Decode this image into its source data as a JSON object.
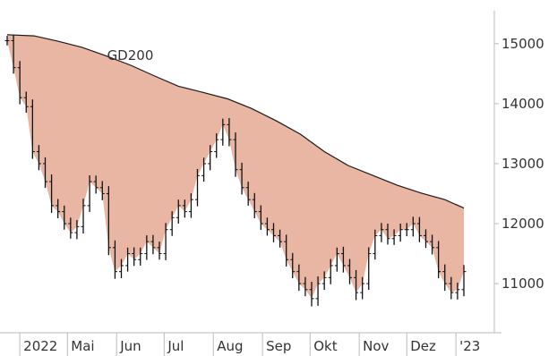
{
  "chart_data": {
    "type": "bar",
    "style": "ohlc-with-moving-average-band",
    "title": "",
    "xlabel": "",
    "ylabel": "",
    "ylim": [
      10300,
      15400
    ],
    "y_ticks": [
      11000,
      12000,
      13000,
      14000,
      15000
    ],
    "y_tick_labels": [
      "11000",
      "12000",
      "13000",
      "14000",
      "15000"
    ],
    "y_axis_position": "right",
    "x_ticks": [
      {
        "label": "2022",
        "date": "2022-04-01"
      },
      {
        "label": "Mai",
        "date": "2022-05-01"
      },
      {
        "label": "Jun",
        "date": "2022-06-01"
      },
      {
        "label": "Jul",
        "date": "2022-07-01"
      },
      {
        "label": "Aug",
        "date": "2022-08-01"
      },
      {
        "label": "Sep",
        "date": "2022-09-01"
      },
      {
        "label": "Okt",
        "date": "2022-10-01"
      },
      {
        "label": "Nov",
        "date": "2022-11-01"
      },
      {
        "label": "Dez",
        "date": "2022-12-01"
      },
      {
        "label": "'23",
        "date": "2023-01-01"
      }
    ],
    "x_range": [
      "2022-03-24",
      "2023-01-06"
    ],
    "grid": false,
    "series": [
      {
        "name": "GD200",
        "kind": "line",
        "x": [
          "2022-03-24",
          "2022-04-10",
          "2022-04-25",
          "2022-05-10",
          "2022-05-25",
          "2022-06-10",
          "2022-06-25",
          "2022-07-10",
          "2022-07-25",
          "2022-08-10",
          "2022-08-25",
          "2022-09-10",
          "2022-09-25",
          "2022-10-10",
          "2022-10-25",
          "2022-11-10",
          "2022-11-25",
          "2022-12-10",
          "2022-12-25",
          "2023-01-06"
        ],
        "values": [
          15150,
          15130,
          15040,
          14940,
          14800,
          14640,
          14460,
          14290,
          14190,
          14080,
          13920,
          13710,
          13490,
          13200,
          12970,
          12800,
          12640,
          12510,
          12400,
          12260
        ]
      },
      {
        "name": "price",
        "kind": "ohlc",
        "x": [
          "2022-03-24",
          "2022-03-28",
          "2022-04-01",
          "2022-04-05",
          "2022-04-09",
          "2022-04-13",
          "2022-04-17",
          "2022-04-21",
          "2022-04-25",
          "2022-04-29",
          "2022-05-03",
          "2022-05-07",
          "2022-05-11",
          "2022-05-15",
          "2022-05-19",
          "2022-05-23",
          "2022-05-27",
          "2022-05-31",
          "2022-06-04",
          "2022-06-08",
          "2022-06-12",
          "2022-06-16",
          "2022-06-20",
          "2022-06-24",
          "2022-06-28",
          "2022-07-02",
          "2022-07-06",
          "2022-07-10",
          "2022-07-14",
          "2022-07-18",
          "2022-07-22",
          "2022-07-26",
          "2022-07-30",
          "2022-08-03",
          "2022-08-07",
          "2022-08-11",
          "2022-08-15",
          "2022-08-19",
          "2022-08-23",
          "2022-08-27",
          "2022-08-31",
          "2022-09-04",
          "2022-09-08",
          "2022-09-12",
          "2022-09-16",
          "2022-09-20",
          "2022-09-24",
          "2022-09-28",
          "2022-10-02",
          "2022-10-06",
          "2022-10-10",
          "2022-10-14",
          "2022-10-18",
          "2022-10-22",
          "2022-10-26",
          "2022-10-30",
          "2022-11-03",
          "2022-11-07",
          "2022-11-11",
          "2022-11-15",
          "2022-11-19",
          "2022-11-23",
          "2022-11-27",
          "2022-12-01",
          "2022-12-05",
          "2022-12-09",
          "2022-12-13",
          "2022-12-17",
          "2022-12-21",
          "2022-12-25",
          "2022-12-29",
          "2023-01-02",
          "2023-01-06"
        ],
        "close": [
          15050,
          14600,
          14100,
          13950,
          13200,
          13000,
          12700,
          12300,
          12200,
          12000,
          11850,
          11950,
          12300,
          12700,
          12600,
          12500,
          11600,
          11200,
          11300,
          11500,
          11400,
          11500,
          11700,
          11600,
          11500,
          11900,
          12100,
          12300,
          12200,
          12400,
          12800,
          13000,
          13200,
          13400,
          13650,
          13400,
          12900,
          12600,
          12400,
          12200,
          12000,
          11900,
          11800,
          11700,
          11400,
          11200,
          11000,
          10900,
          10750,
          11000,
          11100,
          11300,
          11500,
          11300,
          11100,
          10850,
          11000,
          11500,
          11800,
          11900,
          11750,
          11800,
          11900,
          11900,
          12000,
          11800,
          11700,
          11600,
          11200,
          11000,
          10850,
          10900,
          11200
        ],
        "range": [
          160,
          200,
          220,
          200,
          240,
          220,
          210,
          240,
          220,
          200,
          200,
          220,
          230,
          210,
          200,
          220,
          250,
          240,
          220,
          200,
          210,
          200,
          210,
          220,
          200,
          220,
          210,
          200,
          200,
          210,
          220,
          200,
          220,
          210,
          200,
          220,
          240,
          230,
          200,
          220,
          210,
          200,
          220,
          200,
          230,
          220,
          240,
          220,
          260,
          240,
          210,
          220,
          200,
          230,
          220,
          250,
          220,
          210,
          200,
          220,
          200,
          210,
          200,
          220,
          230,
          220,
          210,
          230,
          220,
          240,
          220,
          230,
          220
        ]
      }
    ],
    "colors": {
      "band_fill": "#e8b6a2",
      "line": "#1a1a1a",
      "bars": "#111111",
      "axis": "#bbbbbb",
      "text": "#333333"
    }
  }
}
